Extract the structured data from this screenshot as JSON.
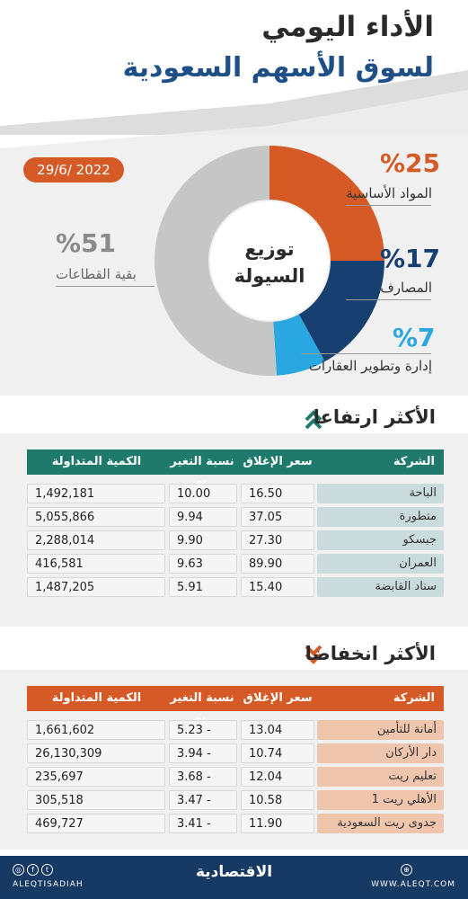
{
  "header": {
    "title_line1": "الأداء اليومي",
    "title_line2": "لسوق الأسهم السعودية"
  },
  "date": "29/6/ 2022",
  "donut": {
    "center_line1": "توزيع",
    "center_line2": "السيولة",
    "segments": [
      {
        "pct_text": "%25",
        "label": "المواد الأساسية",
        "value": 25,
        "color": "#d65a25"
      },
      {
        "pct_text": "%17",
        "label": "المصارف",
        "value": 17,
        "color": "#173f70"
      },
      {
        "pct_text": "%7",
        "label": "إدارة وتطوير العقارات",
        "value": 7,
        "color": "#2aa6e0"
      },
      {
        "pct_text": "%51",
        "label": "بقية القطاعات",
        "value": 51,
        "color": "#c6c6c6"
      }
    ]
  },
  "gainers": {
    "title": "الأكثر ارتفاعا",
    "header_color": "#1f7a6b",
    "row_label_color": "#c9dcdb",
    "columns": [
      "الشركة",
      "سعر الإغلاق",
      "نسبة التغير %",
      "الكمية المتداولة"
    ],
    "rows": [
      [
        "الباحة",
        "16.50",
        "10.00",
        "1,492,181"
      ],
      [
        "متطورة",
        "37.05",
        "9.94",
        "5,055,866"
      ],
      [
        "جبسكو",
        "27.30",
        "9.90",
        "2,288,014"
      ],
      [
        "العمران",
        "89.90",
        "9.63",
        "416,581"
      ],
      [
        "سناد القابضة",
        "15.40",
        "5.91",
        "1,487,205"
      ]
    ]
  },
  "losers": {
    "title": "الأكثر انخفاضا",
    "header_color": "#d65a25",
    "row_label_color": "#efc5ad",
    "columns": [
      "الشركة",
      "سعر الإغلاق",
      "نسبة التغير %",
      "الكمية المتداولة"
    ],
    "rows": [
      [
        "أمانة للتأمين",
        "13.04",
        "5.23 -",
        "1,661,602"
      ],
      [
        "دار الأركان",
        "10.74",
        "3.94 -",
        "26,130,309"
      ],
      [
        "تعليم ريت",
        "12.04",
        "3.68 -",
        "235,697"
      ],
      [
        "الأهلي ريت 1",
        "10.58",
        "3.47 -",
        "305,518"
      ],
      [
        "جدوى ريت السعودية",
        "11.90",
        "3.41 -",
        "469,727"
      ]
    ]
  },
  "footer": {
    "brand": "الاقتصادية",
    "handle": "ALEQTISADIAH",
    "website": "WWW.ALEQT.COM"
  }
}
